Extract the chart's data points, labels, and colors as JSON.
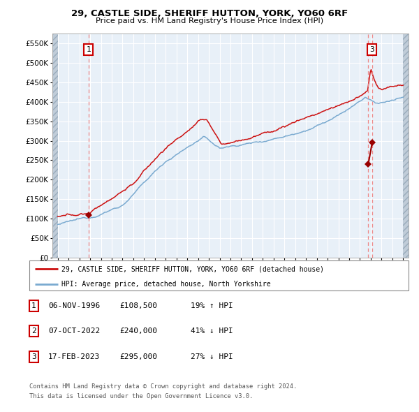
{
  "title1": "29, CASTLE SIDE, SHERIFF HUTTON, YORK, YO60 6RF",
  "title2": "Price paid vs. HM Land Registry's House Price Index (HPI)",
  "legend1": "29, CASTLE SIDE, SHERIFF HUTTON, YORK, YO60 6RF (detached house)",
  "legend2": "HPI: Average price, detached house, North Yorkshire",
  "footer1": "Contains HM Land Registry data © Crown copyright and database right 2024.",
  "footer2": "This data is licensed under the Open Government Licence v3.0.",
  "hpi_color": "#7aaad0",
  "price_color": "#cc1111",
  "marker_color": "#990000",
  "plot_bg": "#e8f0f8",
  "grid_color": "#ffffff",
  "dashed_color": "#ee8888",
  "annotation_box_color": "#cc0000",
  "hatch_color": "#c0ccd8",
  "ylim": [
    0,
    575000
  ],
  "yticks": [
    0,
    50000,
    100000,
    150000,
    200000,
    250000,
    300000,
    350000,
    400000,
    450000,
    500000,
    550000
  ],
  "ytick_labels": [
    "£0",
    "£50K",
    "£100K",
    "£150K",
    "£200K",
    "£250K",
    "£300K",
    "£350K",
    "£400K",
    "£450K",
    "£500K",
    "£550K"
  ],
  "xlim_start": 1993.5,
  "xlim_end": 2026.5,
  "xdata_start": 1994,
  "xdata_end": 2026,
  "t1_year": 1996.85,
  "t2_year": 2022.77,
  "t3_year": 2023.13,
  "t1_price": 108500,
  "t2_price": 240000,
  "t3_price": 295000,
  "table_rows": [
    [
      "1",
      "06-NOV-1996",
      "£108,500",
      "19% ↑ HPI"
    ],
    [
      "2",
      "07-OCT-2022",
      "£240,000",
      "41% ↓ HPI"
    ],
    [
      "3",
      "17-FEB-2023",
      "£295,000",
      "27% ↓ HPI"
    ]
  ]
}
